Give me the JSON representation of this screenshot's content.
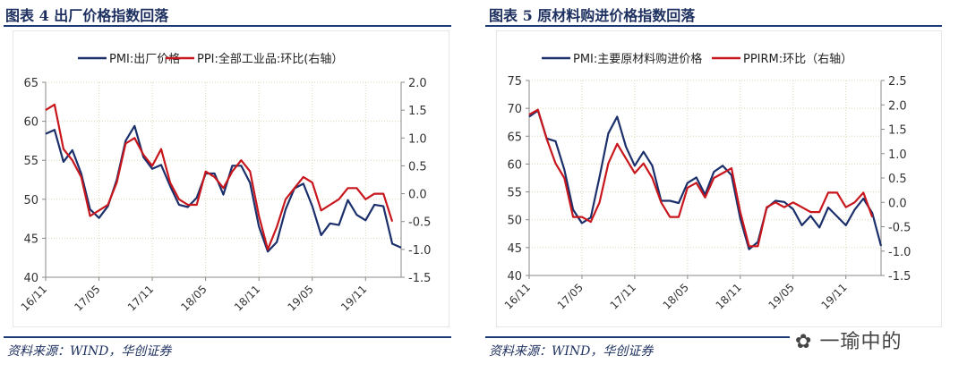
{
  "charts": [
    {
      "title": "图表 4  出厂价格指数回落",
      "source": "资料来源：WIND，华创证券"
    },
    {
      "title": "图表 5  原材料购进价格指数回落",
      "source": "资料来源：WIND，华创证券"
    }
  ],
  "watermark": "一瑜中的",
  "colors": {
    "blue": "#1b2f6b",
    "red": "#c8161d",
    "title": "#1c2f5e"
  },
  "chart_data": [
    {
      "type": "line",
      "x_start": "16/11",
      "x_ticks": [
        "16/11",
        "17/05",
        "17/11",
        "18/05",
        "18/11",
        "19/05",
        "19/11"
      ],
      "ylim": [
        40,
        65
      ],
      "yticks": [
        "40",
        "45",
        "50",
        "55",
        "60",
        "65"
      ],
      "y2lim": [
        -1.5,
        2.0
      ],
      "y2ticks": [
        "-1.5",
        "-1.0",
        "-0.5",
        "0.0",
        "0.5",
        "1.0",
        "1.5",
        "2.0"
      ],
      "legend": "top",
      "grid": true,
      "series": [
        {
          "name": "PMI:出厂价格",
          "axis": "left",
          "color": "#1b2f6b",
          "values": [
            58.4,
            58.9,
            54.8,
            56.3,
            53.3,
            48.7,
            47.6,
            49.1,
            52.5,
            57.5,
            59.4,
            55.4,
            53.9,
            54.4,
            51.7,
            49.3,
            49.0,
            50.2,
            53.3,
            53.3,
            50.6,
            54.3,
            54.3,
            52.1,
            46.5,
            43.3,
            44.5,
            48.7,
            51.4,
            52.0,
            49.1,
            45.4,
            46.9,
            46.7,
            49.9,
            48.0,
            47.3,
            49.3,
            49.1,
            44.3,
            43.8
          ]
        },
        {
          "name": "PPI:全部工业品:环比(右轴）",
          "axis": "right",
          "color": "#c8161d",
          "values": [
            1.5,
            1.6,
            0.8,
            0.6,
            0.3,
            -0.4,
            -0.3,
            -0.2,
            0.2,
            0.9,
            1.0,
            0.7,
            0.5,
            0.8,
            0.2,
            -0.1,
            -0.2,
            -0.2,
            0.4,
            0.3,
            0.1,
            0.4,
            0.6,
            0.4,
            -0.4,
            -1.0,
            -0.6,
            -0.1,
            0.1,
            0.3,
            0.2,
            -0.3,
            -0.2,
            -0.1,
            0.1,
            0.1,
            -0.1,
            0.0,
            0.0,
            -0.5
          ]
        }
      ]
    },
    {
      "type": "line",
      "x_start": "16/11",
      "x_ticks": [
        "16/11",
        "17/05",
        "17/11",
        "18/05",
        "18/11",
        "19/05",
        "19/11"
      ],
      "ylim": [
        40,
        75
      ],
      "yticks": [
        "40",
        "45",
        "50",
        "55",
        "60",
        "65",
        "70",
        "75"
      ],
      "y2lim": [
        -1.5,
        2.5
      ],
      "y2ticks": [
        "-1.5",
        "-1.0",
        "-0.5",
        "0.0",
        "0.5",
        "1.0",
        "1.5",
        "2.0",
        "2.5"
      ],
      "legend": "top",
      "grid": true,
      "series": [
        {
          "name": "PMI:主要原材料购进价格",
          "axis": "left",
          "color": "#1b2f6b",
          "values": [
            68.5,
            69.6,
            64.6,
            64.1,
            59.0,
            51.8,
            49.4,
            50.4,
            57.7,
            65.5,
            68.5,
            63.1,
            59.7,
            62.2,
            59.7,
            53.4,
            53.4,
            53.0,
            56.6,
            57.6,
            54.5,
            58.6,
            59.7,
            58.0,
            50.2,
            44.7,
            46.0,
            52.1,
            53.4,
            53.2,
            51.9,
            49.0,
            50.7,
            48.6,
            52.2,
            50.6,
            49.0,
            51.8,
            53.8,
            51.2,
            45.3
          ]
        },
        {
          "name": "PPIRM:环比（右轴）",
          "axis": "right",
          "color": "#c8161d",
          "values": [
            1.8,
            1.9,
            1.3,
            0.8,
            0.5,
            -0.3,
            -0.3,
            -0.4,
            0.0,
            0.8,
            1.2,
            0.9,
            0.6,
            0.8,
            0.5,
            0.0,
            -0.3,
            -0.3,
            0.3,
            0.4,
            0.1,
            0.5,
            0.6,
            0.7,
            -0.2,
            -0.9,
            -0.9,
            -0.1,
            0.0,
            -0.1,
            0.0,
            -0.1,
            -0.2,
            -0.2,
            0.2,
            0.2,
            -0.1,
            0.0,
            0.2,
            -0.3
          ]
        }
      ]
    }
  ]
}
